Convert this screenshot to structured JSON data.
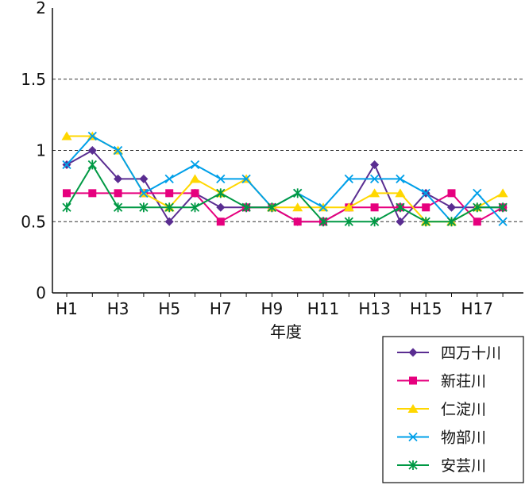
{
  "chart_data": {
    "type": "line",
    "title": "",
    "xlabel": "年度",
    "ylabel": "",
    "ylim": [
      0,
      2
    ],
    "yticks": [
      "0",
      "0.5",
      "1",
      "1.5",
      "2"
    ],
    "ytick_values": [
      0,
      0.5,
      1,
      1.5,
      2
    ],
    "categories": [
      "H1",
      "H2",
      "H3",
      "H4",
      "H5",
      "H6",
      "H7",
      "H8",
      "H9",
      "H10",
      "H11",
      "H12",
      "H13",
      "H14",
      "H15",
      "H16",
      "H17",
      "H18"
    ],
    "x_tick_labels": [
      "H1",
      "",
      "H3",
      "",
      "H5",
      "",
      "H7",
      "",
      "H9",
      "",
      "H11",
      "",
      "H13",
      "",
      "H15",
      "",
      "H17",
      ""
    ],
    "grid": "horizontal-dashed",
    "legend_position": "bottom-right",
    "series": [
      {
        "name": "四万十川",
        "color": "#5a2d91",
        "marker": "diamond",
        "values": [
          0.9,
          1.0,
          0.8,
          0.8,
          0.5,
          0.7,
          0.6,
          0.6,
          0.6,
          0.5,
          0.5,
          0.6,
          0.9,
          0.5,
          0.7,
          0.6,
          0.6,
          0.6
        ]
      },
      {
        "name": "新荘川",
        "color": "#e6007e",
        "marker": "square",
        "values": [
          0.7,
          0.7,
          0.7,
          0.7,
          0.7,
          0.7,
          0.5,
          0.6,
          0.6,
          0.5,
          0.5,
          0.6,
          0.6,
          0.6,
          0.6,
          0.7,
          0.5,
          0.6
        ]
      },
      {
        "name": "仁淀川",
        "color": "#ffd700",
        "marker": "triangle",
        "values": [
          1.1,
          1.1,
          1.0,
          0.7,
          0.6,
          0.8,
          0.7,
          0.8,
          0.6,
          0.6,
          0.6,
          0.6,
          0.7,
          0.7,
          0.5,
          0.5,
          0.6,
          0.7
        ]
      },
      {
        "name": "物部川",
        "color": "#00a0e9",
        "marker": "x",
        "values": [
          0.9,
          1.1,
          1.0,
          0.7,
          0.8,
          0.9,
          0.8,
          0.8,
          0.6,
          0.7,
          0.6,
          0.8,
          0.8,
          0.8,
          0.7,
          0.5,
          0.7,
          0.5
        ]
      },
      {
        "name": "安芸川",
        "color": "#009944",
        "marker": "star",
        "values": [
          0.6,
          0.9,
          0.6,
          0.6,
          0.6,
          0.6,
          0.7,
          0.6,
          0.6,
          0.7,
          0.5,
          0.5,
          0.5,
          0.6,
          0.5,
          0.5,
          0.6,
          0.6
        ]
      }
    ]
  }
}
